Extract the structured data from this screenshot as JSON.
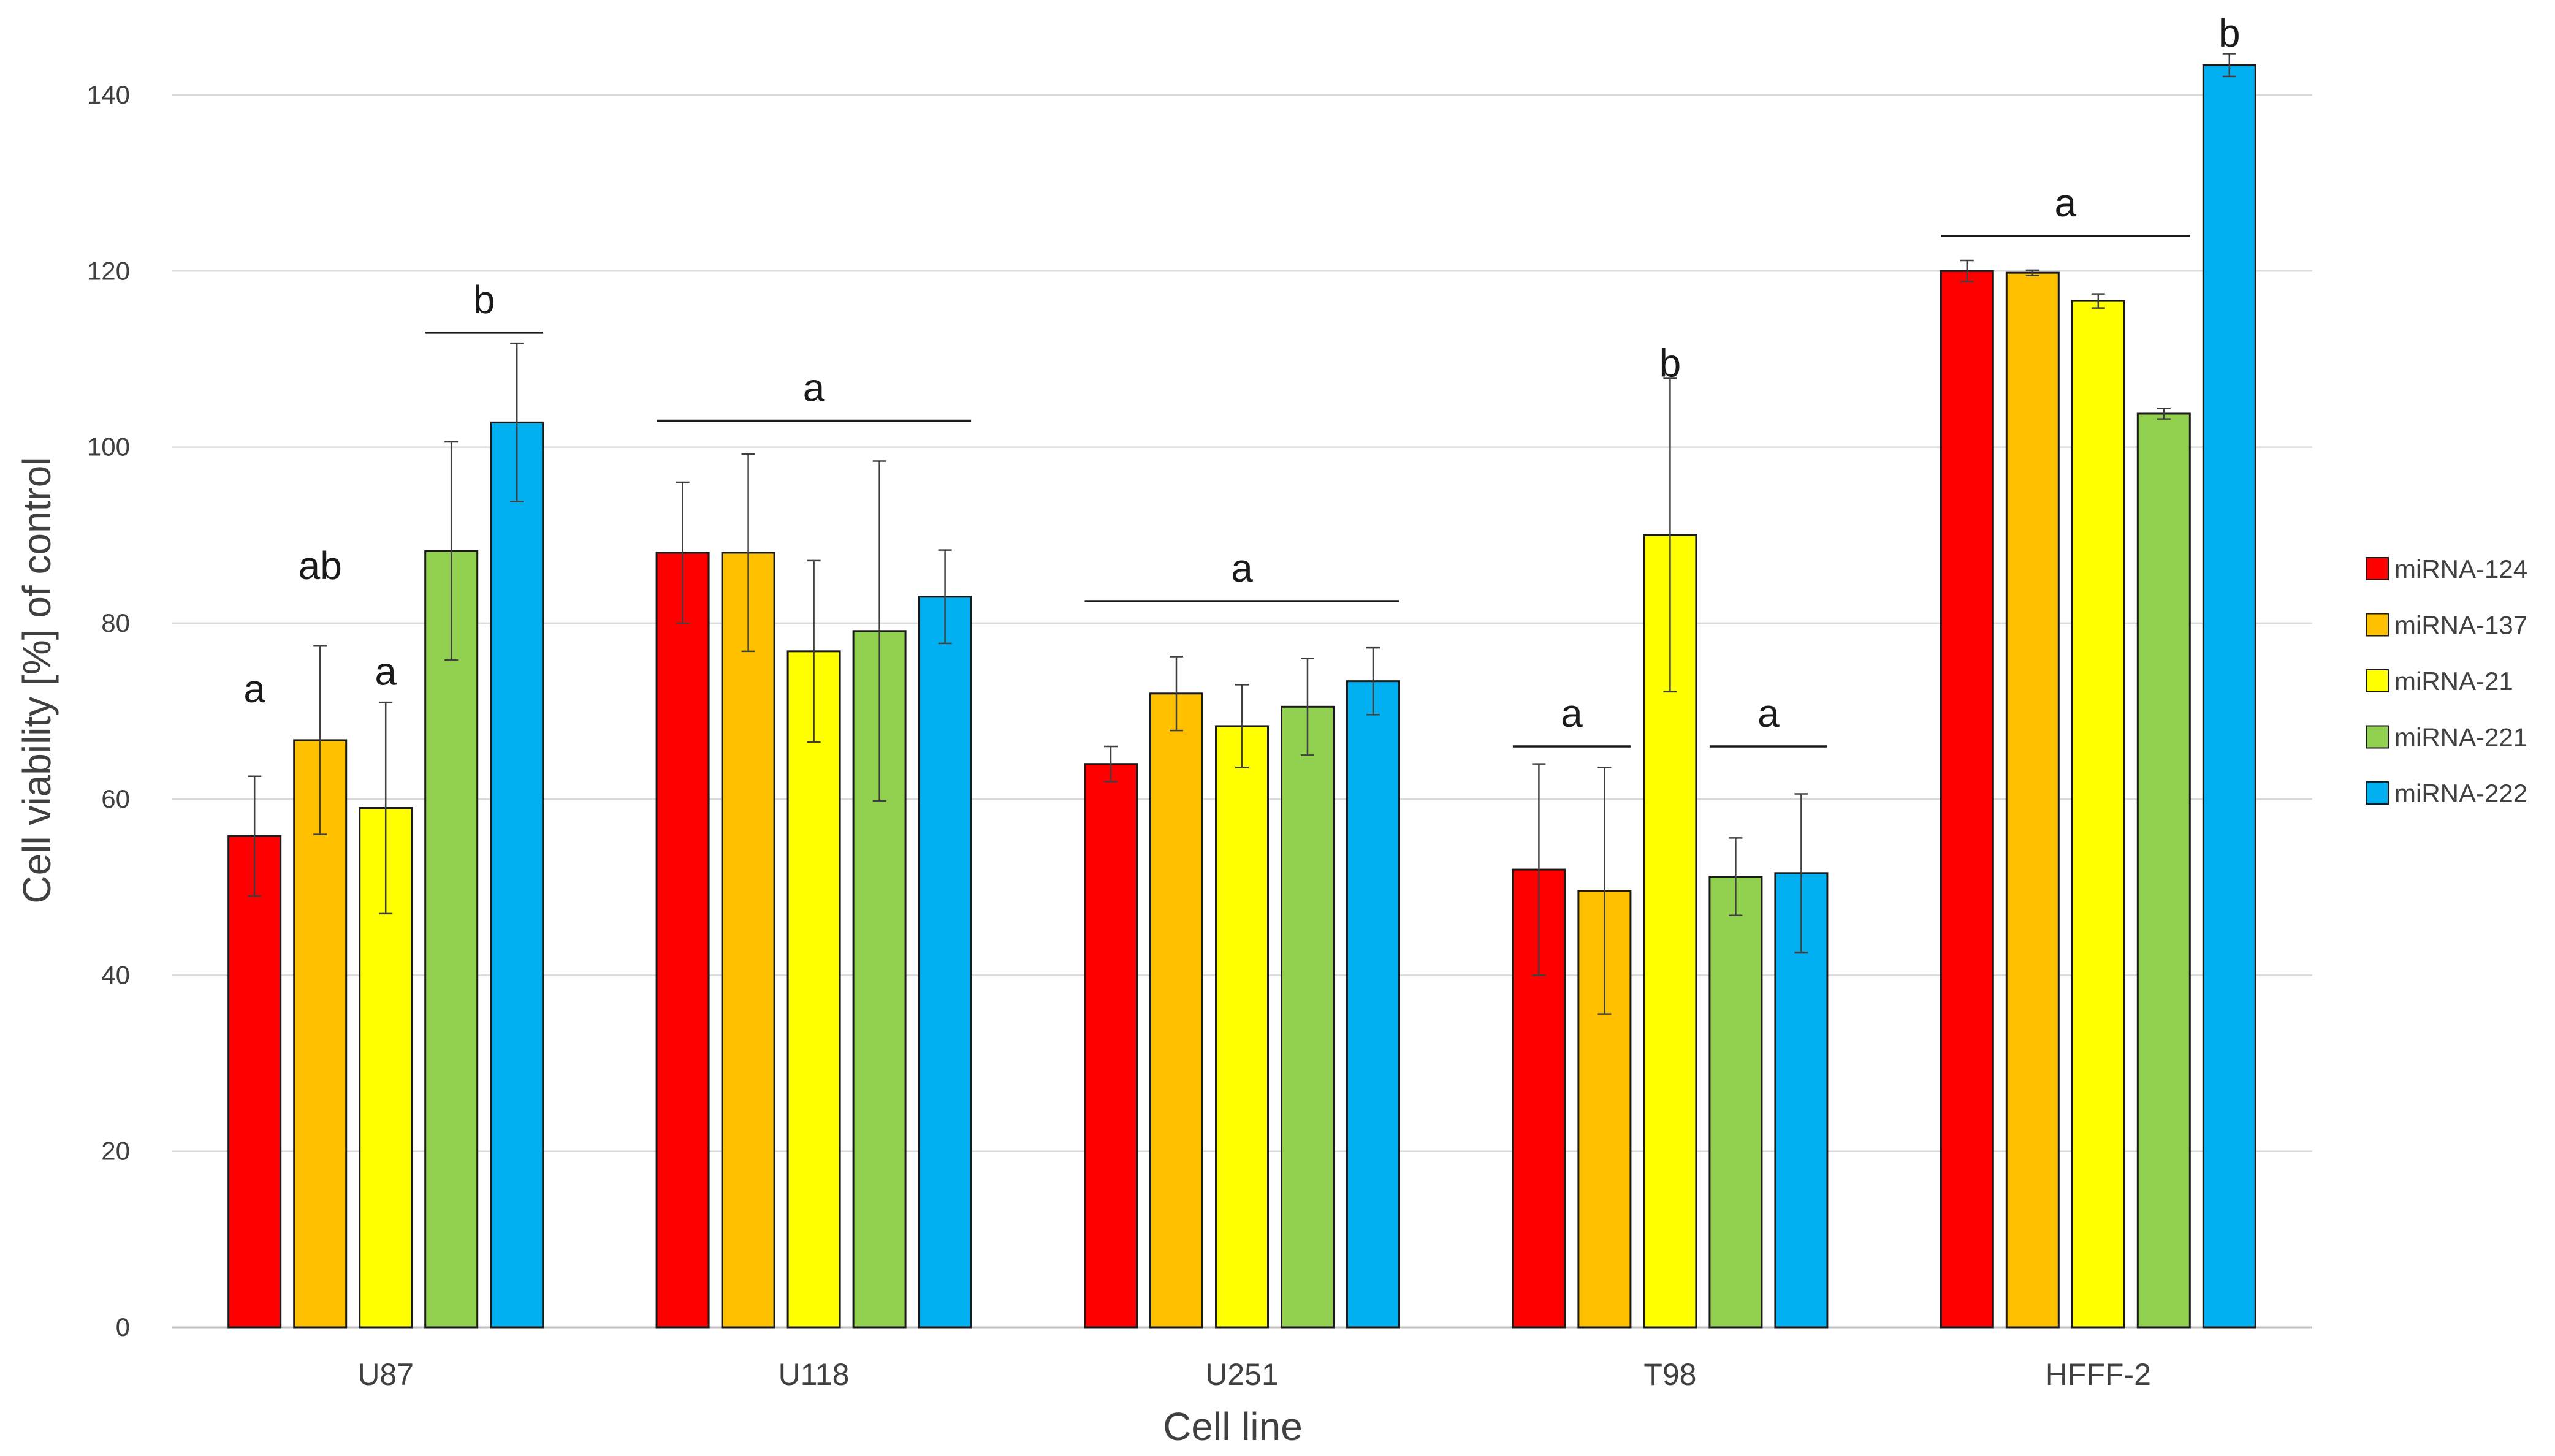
{
  "chart_data": {
    "type": "bar",
    "title": "",
    "xlabel": "Cell line",
    "ylabel": "Cell viability [%] of control",
    "ylim": [
      0,
      140
    ],
    "yticks": [
      0,
      20,
      40,
      60,
      80,
      100,
      120,
      140
    ],
    "grid": true,
    "legend_position": "right",
    "categories": [
      "U87",
      "U118",
      "U251",
      "T98",
      "HFFF-2"
    ],
    "series": [
      {
        "name": "miRNA-124",
        "color": "#ff0000",
        "values": [
          55.8,
          88.0,
          64.0,
          52.0,
          120.0
        ],
        "errors": [
          6.8,
          8.0,
          2.0,
          12.0,
          1.2
        ]
      },
      {
        "name": "miRNA-137",
        "color": "#ffc000",
        "values": [
          66.7,
          88.0,
          72.0,
          49.6,
          119.8
        ],
        "errors": [
          10.7,
          11.2,
          4.2,
          14.0,
          0.3
        ]
      },
      {
        "name": "miRNA-21",
        "color": "#ffff00",
        "values": [
          59.0,
          76.8,
          68.3,
          90.0,
          116.6
        ],
        "errors": [
          12.0,
          10.3,
          4.7,
          17.8,
          0.8
        ]
      },
      {
        "name": "miRNA-221",
        "color": "#92d050",
        "values": [
          88.2,
          79.1,
          70.5,
          51.2,
          103.8
        ],
        "errors": [
          12.4,
          19.3,
          5.5,
          4.4,
          0.6
        ]
      },
      {
        "name": "miRNA-222",
        "color": "#00b0f0",
        "values": [
          102.8,
          83.0,
          73.4,
          51.6,
          143.4
        ],
        "errors": [
          9.0,
          5.3,
          3.8,
          9.0,
          1.3
        ]
      }
    ],
    "annotations": [
      {
        "text": "a",
        "category": 0,
        "series_from": 0,
        "series_to": 0,
        "y": 71,
        "bracket": false
      },
      {
        "text": "ab",
        "category": 0,
        "series_from": 1,
        "series_to": 1,
        "y": 85,
        "bracket": false
      },
      {
        "text": "a",
        "category": 0,
        "series_from": 2,
        "series_to": 2,
        "y": 73,
        "bracket": false
      },
      {
        "text": "b",
        "category": 0,
        "series_from": 3,
        "series_to": 4,
        "y": 113,
        "bracket": true
      },
      {
        "text": "a",
        "category": 1,
        "series_from": 0,
        "series_to": 4,
        "y": 103,
        "bracket": true
      },
      {
        "text": "a",
        "category": 2,
        "series_from": 0,
        "series_to": 4,
        "y": 82.5,
        "bracket": true
      },
      {
        "text": "a",
        "category": 3,
        "series_from": 0,
        "series_to": 1,
        "y": 66,
        "bracket": true
      },
      {
        "text": "b",
        "category": 3,
        "series_from": 2,
        "series_to": 2,
        "y": 108,
        "bracket": false
      },
      {
        "text": "a",
        "category": 3,
        "series_from": 3,
        "series_to": 4,
        "y": 66,
        "bracket": true
      },
      {
        "text": "a",
        "category": 4,
        "series_from": 0,
        "series_to": 3,
        "y": 124,
        "bracket": true
      },
      {
        "text": "b",
        "category": 4,
        "series_from": 4,
        "series_to": 4,
        "y": 145.5,
        "bracket": false
      }
    ]
  }
}
